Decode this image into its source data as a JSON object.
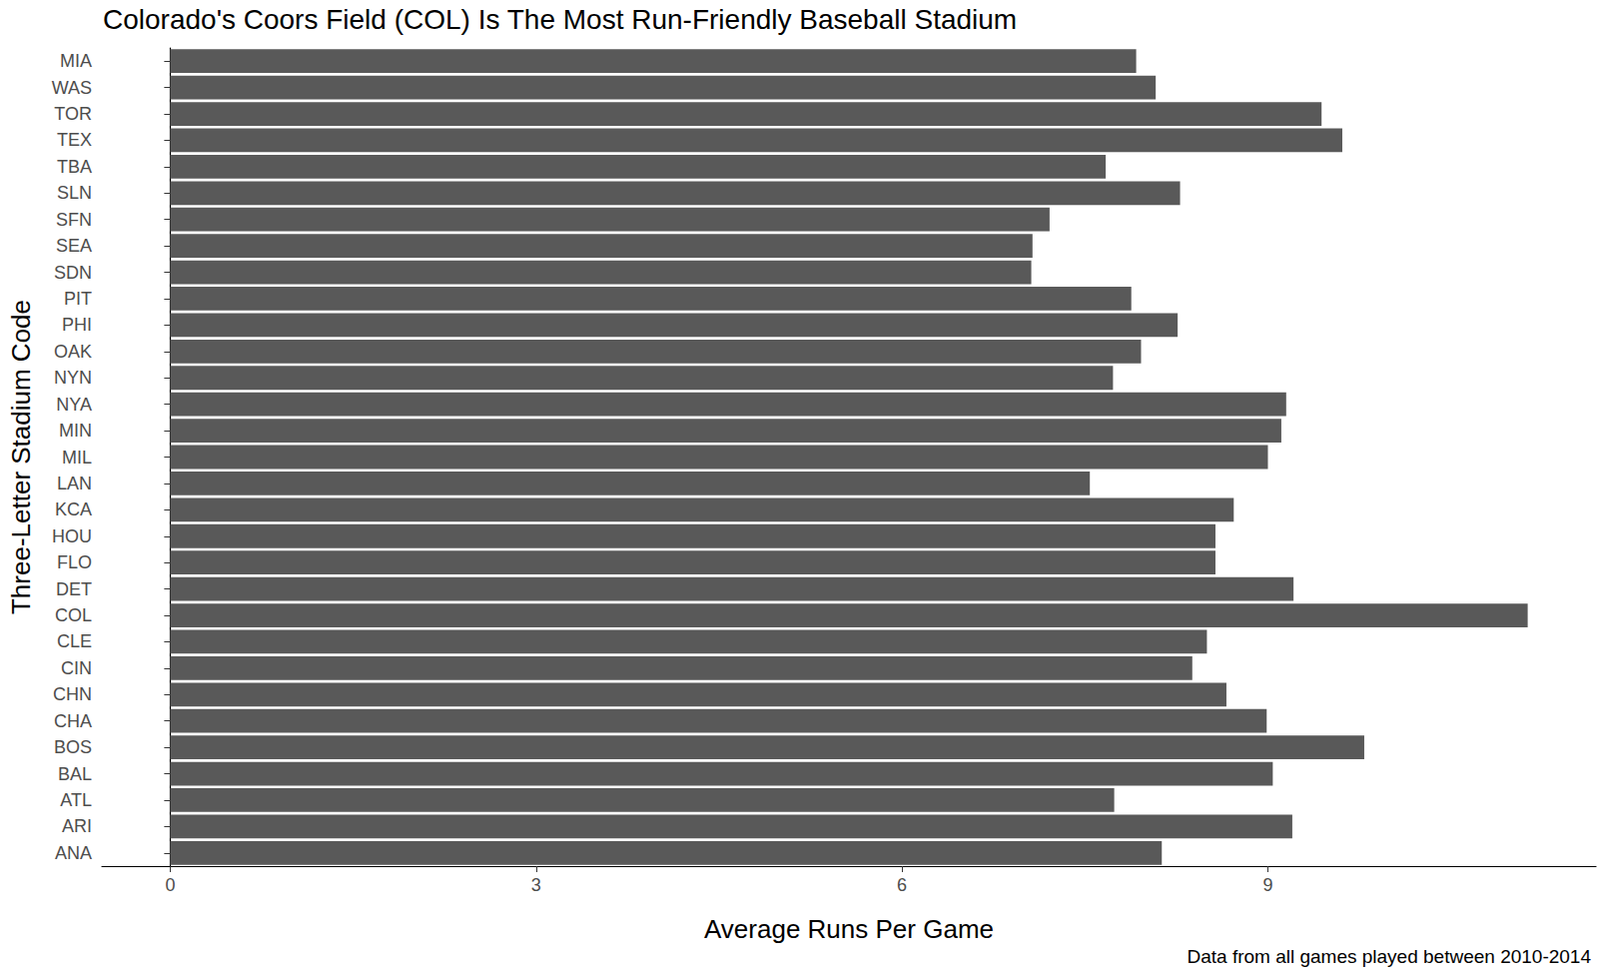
{
  "chart_data": {
    "type": "bar",
    "orientation": "horizontal",
    "title": "Colorado's Coors Field (COL) Is The Most Run-Friendly Baseball Stadium",
    "x_label": "Average Runs Per Game",
    "y_label": "Three-Letter Stadium Code",
    "caption": "Data from all games played between 2010-2014",
    "categories": [
      "ANA",
      "ARI",
      "ATL",
      "BAL",
      "BOS",
      "CHA",
      "CHN",
      "CIN",
      "CLE",
      "COL",
      "DET",
      "FLO",
      "HOU",
      "KCA",
      "LAN",
      "MIL",
      "MIN",
      "NYA",
      "NYN",
      "OAK",
      "PHI",
      "PIT",
      "SDN",
      "SEA",
      "SFN",
      "SLN",
      "TBA",
      "TEX",
      "TOR",
      "WAS",
      "MIA"
    ],
    "values": [
      8.13,
      9.2,
      7.74,
      9.04,
      9.79,
      8.99,
      8.66,
      8.38,
      8.5,
      11.13,
      9.21,
      8.57,
      8.57,
      8.72,
      7.54,
      9.0,
      9.11,
      9.15,
      7.73,
      7.96,
      8.26,
      7.88,
      7.06,
      7.07,
      7.21,
      8.28,
      7.67,
      9.61,
      9.44,
      8.08,
      7.92
    ],
    "color": "#595959",
    "xlim": [
      -0.56,
      11.69
    ],
    "xticks": [
      0,
      3,
      6,
      9
    ],
    "grid": false
  }
}
